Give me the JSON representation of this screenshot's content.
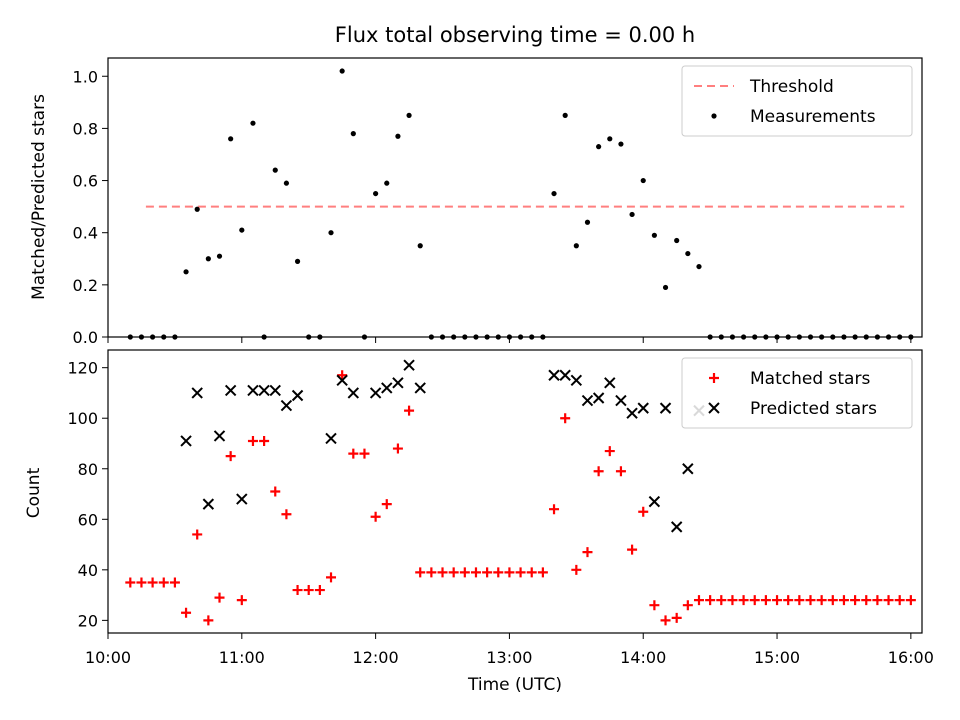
{
  "chart_data": [
    {
      "type": "scatter",
      "title": "Flux total observing time = 0.00 h",
      "xlabel": "",
      "ylabel": "Matched/Predicted stars",
      "xlim": [
        "10:00",
        "16:05"
      ],
      "ylim": [
        0,
        1.07
      ],
      "yticks": [
        "0.0",
        "0.2",
        "0.4",
        "0.6",
        "0.8",
        "1.0"
      ],
      "legend_position": "top-right",
      "threshold": {
        "name": "Threshold",
        "value": 0.5,
        "x_range": [
          "10:17",
          "15:57"
        ],
        "color": "#ff7f7f",
        "style": "dashed"
      },
      "series": [
        {
          "name": "Measurements",
          "color": "#000000",
          "marker": "dot",
          "points": [
            [
              "10:10",
              0
            ],
            [
              "10:15",
              0
            ],
            [
              "10:20",
              0
            ],
            [
              "10:25",
              0
            ],
            [
              "10:30",
              0
            ],
            [
              "10:35",
              0.25
            ],
            [
              "10:40",
              0.49
            ],
            [
              "10:45",
              0.3
            ],
            [
              "10:50",
              0.31
            ],
            [
              "10:55",
              0.76
            ],
            [
              "11:00",
              0.41
            ],
            [
              "11:05",
              0.82
            ],
            [
              "11:10",
              0
            ],
            [
              "11:15",
              0.64
            ],
            [
              "11:20",
              0.59
            ],
            [
              "11:25",
              0.29
            ],
            [
              "11:30",
              0
            ],
            [
              "11:35",
              0
            ],
            [
              "11:40",
              0.4
            ],
            [
              "11:45",
              1.02
            ],
            [
              "11:50",
              0.78
            ],
            [
              "11:55",
              0
            ],
            [
              "12:00",
              0.55
            ],
            [
              "12:05",
              0.59
            ],
            [
              "12:10",
              0.77
            ],
            [
              "12:15",
              0.85
            ],
            [
              "12:20",
              0.35
            ],
            [
              "12:25",
              0
            ],
            [
              "12:30",
              0
            ],
            [
              "12:35",
              0
            ],
            [
              "12:40",
              0
            ],
            [
              "12:45",
              0
            ],
            [
              "12:50",
              0
            ],
            [
              "12:55",
              0
            ],
            [
              "13:00",
              0
            ],
            [
              "13:05",
              0
            ],
            [
              "13:10",
              0
            ],
            [
              "13:15",
              0
            ],
            [
              "13:20",
              0.55
            ],
            [
              "13:25",
              0.85
            ],
            [
              "13:30",
              0.35
            ],
            [
              "13:35",
              0.44
            ],
            [
              "13:40",
              0.73
            ],
            [
              "13:45",
              0.76
            ],
            [
              "13:50",
              0.74
            ],
            [
              "13:55",
              0.47
            ],
            [
              "14:00",
              0.6
            ],
            [
              "14:05",
              0.39
            ],
            [
              "14:10",
              0.19
            ],
            [
              "14:15",
              0.37
            ],
            [
              "14:20",
              0.32
            ],
            [
              "14:25",
              0.27
            ],
            [
              "14:30",
              0
            ],
            [
              "14:35",
              0
            ],
            [
              "14:40",
              0
            ],
            [
              "14:45",
              0
            ],
            [
              "14:50",
              0
            ],
            [
              "14:55",
              0
            ],
            [
              "15:00",
              0
            ],
            [
              "15:05",
              0
            ],
            [
              "15:10",
              0
            ],
            [
              "15:15",
              0
            ],
            [
              "15:20",
              0
            ],
            [
              "15:25",
              0
            ],
            [
              "15:30",
              0
            ],
            [
              "15:35",
              0
            ],
            [
              "15:40",
              0
            ],
            [
              "15:45",
              0
            ],
            [
              "15:50",
              0
            ],
            [
              "15:55",
              0
            ],
            [
              "16:00",
              0
            ]
          ]
        }
      ]
    },
    {
      "type": "scatter",
      "title": "",
      "xlabel": "Time (UTC)",
      "ylabel": "Count",
      "xlim": [
        "10:00",
        "16:05"
      ],
      "ylim": [
        15,
        127
      ],
      "xticks": [
        "10:00",
        "11:00",
        "12:00",
        "13:00",
        "14:00",
        "15:00",
        "16:00"
      ],
      "yticks": [
        "20",
        "40",
        "60",
        "80",
        "100",
        "120"
      ],
      "legend_position": "top-right",
      "series": [
        {
          "name": "Matched stars",
          "color": "#ff0000",
          "marker": "plus",
          "points": [
            [
              "10:10",
              35
            ],
            [
              "10:15",
              35
            ],
            [
              "10:20",
              35
            ],
            [
              "10:25",
              35
            ],
            [
              "10:30",
              35
            ],
            [
              "10:35",
              23
            ],
            [
              "10:40",
              54
            ],
            [
              "10:45",
              20
            ],
            [
              "10:50",
              29
            ],
            [
              "10:55",
              85
            ],
            [
              "11:00",
              28
            ],
            [
              "11:05",
              91
            ],
            [
              "11:10",
              91
            ],
            [
              "11:15",
              71
            ],
            [
              "11:20",
              62
            ],
            [
              "11:25",
              32
            ],
            [
              "11:30",
              32
            ],
            [
              "11:35",
              32
            ],
            [
              "11:40",
              37
            ],
            [
              "11:45",
              117
            ],
            [
              "11:50",
              86
            ],
            [
              "11:55",
              86
            ],
            [
              "12:00",
              61
            ],
            [
              "12:05",
              66
            ],
            [
              "12:10",
              88
            ],
            [
              "12:15",
              103
            ],
            [
              "12:20",
              39
            ],
            [
              "12:25",
              39
            ],
            [
              "12:30",
              39
            ],
            [
              "12:35",
              39
            ],
            [
              "12:40",
              39
            ],
            [
              "12:45",
              39
            ],
            [
              "12:50",
              39
            ],
            [
              "12:55",
              39
            ],
            [
              "13:00",
              39
            ],
            [
              "13:05",
              39
            ],
            [
              "13:10",
              39
            ],
            [
              "13:15",
              39
            ],
            [
              "13:20",
              64
            ],
            [
              "13:25",
              100
            ],
            [
              "13:30",
              40
            ],
            [
              "13:35",
              47
            ],
            [
              "13:40",
              79
            ],
            [
              "13:45",
              87
            ],
            [
              "13:50",
              79
            ],
            [
              "13:55",
              48
            ],
            [
              "14:00",
              63
            ],
            [
              "14:05",
              26
            ],
            [
              "14:10",
              20
            ],
            [
              "14:15",
              21
            ],
            [
              "14:20",
              26
            ],
            [
              "14:25",
              28
            ],
            [
              "14:30",
              28
            ],
            [
              "14:35",
              28
            ],
            [
              "14:40",
              28
            ],
            [
              "14:45",
              28
            ],
            [
              "14:50",
              28
            ],
            [
              "14:55",
              28
            ],
            [
              "15:00",
              28
            ],
            [
              "15:05",
              28
            ],
            [
              "15:10",
              28
            ],
            [
              "15:15",
              28
            ],
            [
              "15:20",
              28
            ],
            [
              "15:25",
              28
            ],
            [
              "15:30",
              28
            ],
            [
              "15:35",
              28
            ],
            [
              "15:40",
              28
            ],
            [
              "15:45",
              28
            ],
            [
              "15:50",
              28
            ],
            [
              "15:55",
              28
            ],
            [
              "16:00",
              28
            ]
          ]
        },
        {
          "name": "Predicted stars",
          "color": "#000000",
          "marker": "x",
          "points": [
            [
              "10:35",
              91
            ],
            [
              "10:40",
              110
            ],
            [
              "10:45",
              66
            ],
            [
              "10:50",
              93
            ],
            [
              "10:55",
              111
            ],
            [
              "11:00",
              68
            ],
            [
              "11:05",
              111
            ],
            [
              "11:10",
              111
            ],
            [
              "11:15",
              111
            ],
            [
              "11:20",
              105
            ],
            [
              "11:25",
              109
            ],
            [
              "11:40",
              92
            ],
            [
              "11:45",
              115
            ],
            [
              "11:50",
              110
            ],
            [
              "12:00",
              110
            ],
            [
              "12:05",
              112
            ],
            [
              "12:10",
              114
            ],
            [
              "12:15",
              121
            ],
            [
              "12:20",
              112
            ],
            [
              "13:20",
              117
            ],
            [
              "13:25",
              117
            ],
            [
              "13:30",
              115
            ],
            [
              "13:35",
              107
            ],
            [
              "13:40",
              108
            ],
            [
              "13:45",
              114
            ],
            [
              "13:50",
              107
            ],
            [
              "13:55",
              102
            ],
            [
              "14:00",
              104
            ],
            [
              "14:05",
              67
            ],
            [
              "14:10",
              104
            ],
            [
              "14:15",
              57
            ],
            [
              "14:20",
              80
            ],
            [
              "14:25",
              103
            ]
          ]
        }
      ]
    }
  ]
}
